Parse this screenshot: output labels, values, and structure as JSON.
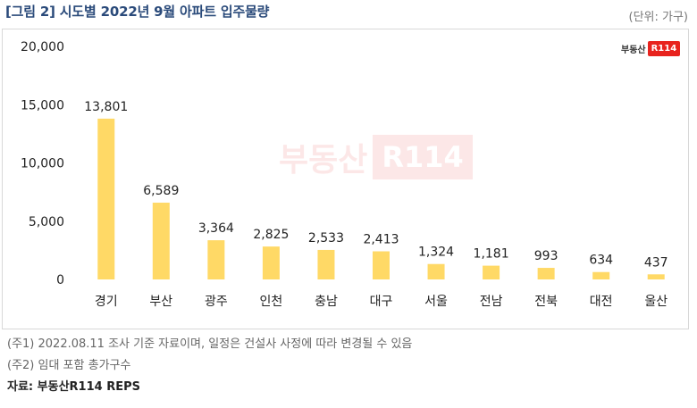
{
  "title": "[그림 2] 시도별 2022년 9월 아파트 입주물량",
  "unit_label": "(단위: 가구)",
  "logo": {
    "text": "부동산",
    "box": "R114"
  },
  "watermark": {
    "text": "부동산",
    "box": "R114"
  },
  "notes": [
    "(주1) 2022.08.11 조사 기준 자료이며, 일정은 건설사 사정에 따라 변경될 수 있음",
    "(주2) 임대 포함 총가구수"
  ],
  "source": "자료: 부동산R114 REPS",
  "bar_color": "#ffd966",
  "chart_data": {
    "type": "bar",
    "title": "[그림 2] 시도별 2022년 9월 아파트 입주물량",
    "ylabel": "",
    "xlabel": "",
    "ylim": [
      0,
      20000
    ],
    "yticks": [
      0,
      5000,
      10000,
      15000,
      20000
    ],
    "ytick_labels": [
      "0",
      "5,000",
      "10,000",
      "15,000",
      "20,000"
    ],
    "grid": false,
    "categories": [
      "경기",
      "부산",
      "광주",
      "인천",
      "충남",
      "대구",
      "서울",
      "전남",
      "전북",
      "대전",
      "울산"
    ],
    "values": [
      13801,
      6589,
      3364,
      2825,
      2533,
      2413,
      1324,
      1181,
      993,
      634,
      437
    ],
    "value_labels": [
      "13,801",
      "6,589",
      "3,364",
      "2,825",
      "2,533",
      "2,413",
      "1,324",
      "1,181",
      "993",
      "634",
      "437"
    ]
  }
}
